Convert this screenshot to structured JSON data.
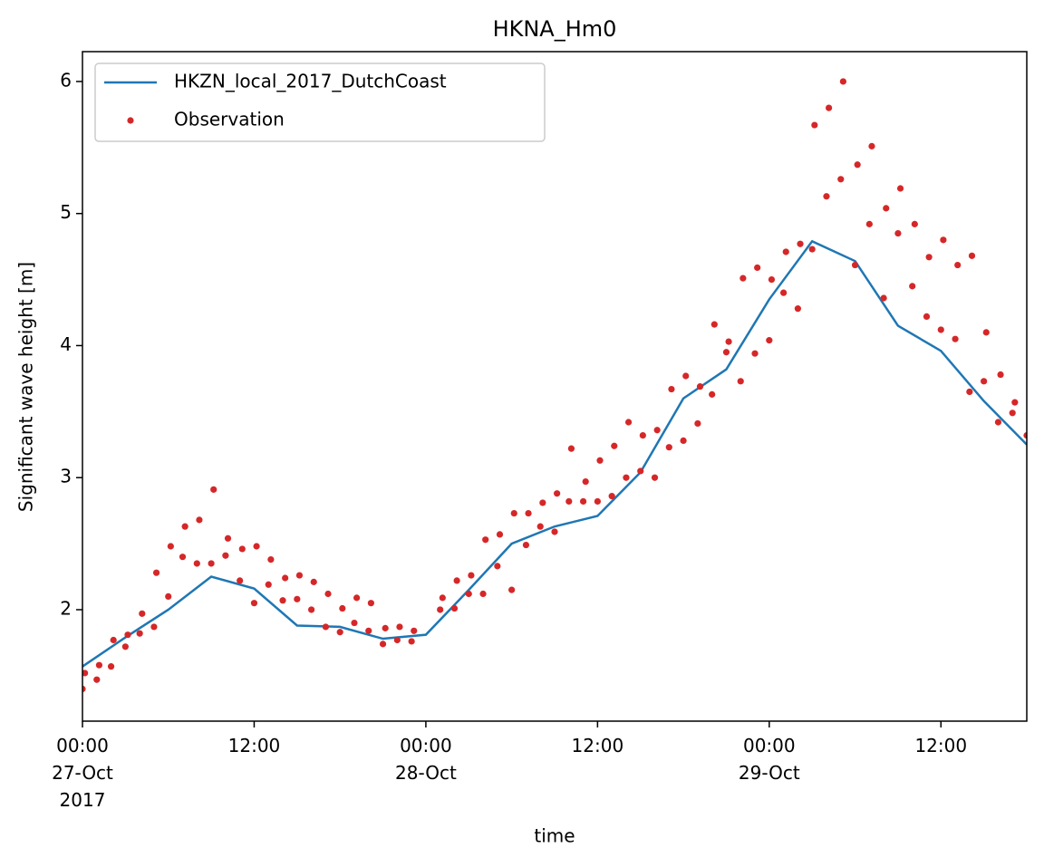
{
  "chart_data": {
    "type": "line_scatter",
    "title": "HKNA_Hm0",
    "x_label": "time",
    "y_label": "Significant wave height [m]",
    "xlim": [
      "2017-10-27T00:00",
      "2017-10-29T18:00"
    ],
    "xticks": [
      {
        "value": "2017-10-27T00:00",
        "label": "00:00\n27-Oct\n2017"
      },
      {
        "value": "2017-10-27T12:00",
        "label": "12:00"
      },
      {
        "value": "2017-10-28T00:00",
        "label": "00:00\n28-Oct"
      },
      {
        "value": "2017-10-28T12:00",
        "label": "12:00"
      },
      {
        "value": "2017-10-29T00:00",
        "label": "00:00\n29-Oct"
      },
      {
        "value": "2017-10-29T12:00",
        "label": "12:00"
      }
    ],
    "ylim": [
      1.156,
      6.226
    ],
    "yticks": [
      2,
      3,
      4,
      5,
      6
    ],
    "grid": false,
    "legend": "upper left",
    "series": [
      {
        "name": "HKZN_local_2017_DutchCoast",
        "type": "line",
        "color": "#1f77b4",
        "x": [
          "2017-10-27T00:00",
          "2017-10-27T03:00",
          "2017-10-27T06:00",
          "2017-10-27T09:00",
          "2017-10-27T12:00",
          "2017-10-27T15:00",
          "2017-10-27T18:00",
          "2017-10-27T21:00",
          "2017-10-28T00:00",
          "2017-10-28T03:00",
          "2017-10-28T06:00",
          "2017-10-28T09:00",
          "2017-10-28T12:00",
          "2017-10-28T15:00",
          "2017-10-28T18:00",
          "2017-10-28T21:00",
          "2017-10-29T00:00",
          "2017-10-29T03:00",
          "2017-10-29T06:00",
          "2017-10-29T09:00",
          "2017-10-29T12:00",
          "2017-10-29T15:00",
          "2017-10-29T18:00"
        ],
        "values": [
          1.57,
          1.79,
          2.0,
          2.25,
          2.16,
          1.88,
          1.87,
          1.78,
          1.81,
          2.15,
          2.5,
          2.63,
          2.71,
          3.04,
          3.6,
          3.82,
          4.35,
          4.79,
          4.64,
          4.15,
          3.96,
          3.58,
          3.25
        ]
      },
      {
        "name": "Observation",
        "type": "scatter",
        "color": "#d62728",
        "x": [
          "2017-10-27T00:00",
          "2017-10-27T00:10",
          "2017-10-27T01:00",
          "2017-10-27T01:10",
          "2017-10-27T02:00",
          "2017-10-27T02:10",
          "2017-10-27T03:00",
          "2017-10-27T03:10",
          "2017-10-27T04:00",
          "2017-10-27T04:10",
          "2017-10-27T05:00",
          "2017-10-27T05:10",
          "2017-10-27T06:00",
          "2017-10-27T06:10",
          "2017-10-27T07:00",
          "2017-10-27T07:10",
          "2017-10-27T08:00",
          "2017-10-27T08:10",
          "2017-10-27T09:00",
          "2017-10-27T09:10",
          "2017-10-27T10:00",
          "2017-10-27T10:10",
          "2017-10-27T11:00",
          "2017-10-27T11:10",
          "2017-10-27T12:00",
          "2017-10-27T12:10",
          "2017-10-27T13:00",
          "2017-10-27T13:10",
          "2017-10-27T14:00",
          "2017-10-27T14:10",
          "2017-10-27T15:00",
          "2017-10-27T15:10",
          "2017-10-27T16:00",
          "2017-10-27T16:10",
          "2017-10-27T17:00",
          "2017-10-27T17:10",
          "2017-10-27T18:00",
          "2017-10-27T18:10",
          "2017-10-27T19:00",
          "2017-10-27T19:10",
          "2017-10-27T20:00",
          "2017-10-27T20:10",
          "2017-10-27T21:00",
          "2017-10-27T21:10",
          "2017-10-27T22:00",
          "2017-10-27T22:10",
          "2017-10-27T23:00",
          "2017-10-27T23:10",
          "2017-10-28T01:00",
          "2017-10-28T01:10",
          "2017-10-28T02:00",
          "2017-10-28T02:10",
          "2017-10-28T03:00",
          "2017-10-28T03:10",
          "2017-10-28T04:00",
          "2017-10-28T04:10",
          "2017-10-28T05:00",
          "2017-10-28T05:10",
          "2017-10-28T06:00",
          "2017-10-28T06:10",
          "2017-10-28T07:00",
          "2017-10-28T07:10",
          "2017-10-28T08:00",
          "2017-10-28T08:10",
          "2017-10-28T09:00",
          "2017-10-28T09:10",
          "2017-10-28T10:00",
          "2017-10-28T10:10",
          "2017-10-28T11:00",
          "2017-10-28T11:10",
          "2017-10-28T12:00",
          "2017-10-28T12:10",
          "2017-10-28T13:00",
          "2017-10-28T13:10",
          "2017-10-28T14:00",
          "2017-10-28T14:10",
          "2017-10-28T15:00",
          "2017-10-28T15:10",
          "2017-10-28T16:00",
          "2017-10-28T16:10",
          "2017-10-28T17:00",
          "2017-10-28T17:10",
          "2017-10-28T18:00",
          "2017-10-28T18:10",
          "2017-10-28T19:00",
          "2017-10-28T19:10",
          "2017-10-28T20:00",
          "2017-10-28T20:10",
          "2017-10-28T21:00",
          "2017-10-28T21:10",
          "2017-10-28T22:00",
          "2017-10-28T22:10",
          "2017-10-28T23:00",
          "2017-10-28T23:10",
          "2017-10-29T00:00",
          "2017-10-29T00:10",
          "2017-10-29T01:00",
          "2017-10-29T01:10",
          "2017-10-29T02:00",
          "2017-10-29T02:10",
          "2017-10-29T03:00",
          "2017-10-29T03:10",
          "2017-10-29T04:00",
          "2017-10-29T04:10",
          "2017-10-29T05:00",
          "2017-10-29T05:10",
          "2017-10-29T06:00",
          "2017-10-29T06:10",
          "2017-10-29T07:00",
          "2017-10-29T07:10",
          "2017-10-29T08:00",
          "2017-10-29T08:10",
          "2017-10-29T09:00",
          "2017-10-29T09:10",
          "2017-10-29T10:00",
          "2017-10-29T10:10",
          "2017-10-29T11:00",
          "2017-10-29T11:10",
          "2017-10-29T12:00",
          "2017-10-29T12:10",
          "2017-10-29T13:00",
          "2017-10-29T13:10",
          "2017-10-29T14:00",
          "2017-10-29T14:10",
          "2017-10-29T15:00",
          "2017-10-29T15:10",
          "2017-10-29T16:00",
          "2017-10-29T16:10",
          "2017-10-29T17:00",
          "2017-10-29T17:10",
          "2017-10-29T18:00"
        ],
        "values": [
          1.4,
          1.52,
          1.47,
          1.58,
          1.57,
          1.77,
          1.72,
          1.81,
          1.82,
          1.97,
          1.87,
          2.28,
          2.1,
          2.48,
          2.4,
          2.63,
          2.35,
          2.68,
          2.35,
          2.91,
          2.41,
          2.54,
          2.22,
          2.46,
          2.05,
          2.48,
          2.19,
          2.38,
          2.07,
          2.24,
          2.08,
          2.26,
          2.0,
          2.21,
          1.87,
          2.12,
          1.83,
          2.01,
          1.9,
          2.09,
          1.84,
          2.05,
          1.74,
          1.86,
          1.77,
          1.87,
          1.76,
          1.84,
          2.0,
          2.09,
          2.01,
          2.22,
          2.12,
          2.26,
          2.12,
          2.53,
          2.33,
          2.57,
          2.15,
          2.73,
          2.49,
          2.73,
          2.63,
          2.81,
          2.59,
          2.88,
          2.82,
          3.22,
          2.82,
          2.97,
          2.82,
          3.13,
          2.86,
          3.24,
          3.0,
          3.42,
          3.05,
          3.32,
          3.0,
          3.36,
          3.23,
          3.67,
          3.28,
          3.77,
          3.41,
          3.69,
          3.63,
          4.16,
          3.95,
          4.03,
          3.73,
          4.51,
          3.94,
          4.59,
          4.04,
          4.5,
          4.4,
          4.71,
          4.28,
          4.77,
          4.73,
          5.67,
          5.13,
          5.8,
          5.26,
          6.0,
          4.61,
          5.37,
          4.92,
          5.51,
          4.36,
          5.04,
          4.85,
          5.19,
          4.45,
          4.92,
          4.22,
          4.67,
          4.12,
          4.8,
          4.05,
          4.61,
          3.65,
          4.68,
          3.73,
          4.1,
          3.42,
          3.78,
          3.49,
          3.57,
          3.32
        ]
      }
    ]
  }
}
